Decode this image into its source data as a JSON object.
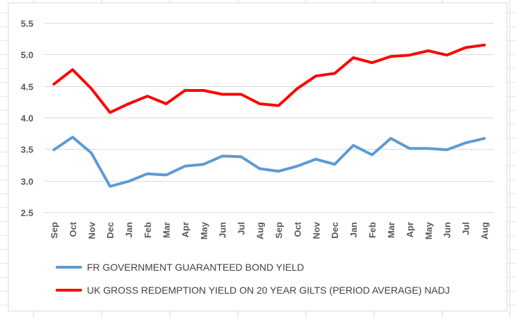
{
  "chart_data": {
    "type": "line",
    "categories": [
      "Sep",
      "Oct",
      "Nov",
      "Dec",
      "Jan",
      "Feb",
      "Mar",
      "Apr",
      "May",
      "Jun",
      "Jul",
      "Aug",
      "Sep",
      "Oct",
      "Nov",
      "Dec",
      "Jan",
      "Feb",
      "Mar",
      "Apr",
      "May",
      "Jun",
      "Jul",
      "Aug"
    ],
    "ylim": [
      2.5,
      5.5
    ],
    "yticks": [
      "5.5",
      "5.0",
      "4.5",
      "4.0",
      "3.5",
      "3.0",
      "2.5"
    ],
    "ytick_values": [
      5.5,
      5.0,
      4.5,
      4.0,
      3.5,
      3.0,
      2.5
    ],
    "grid": true,
    "legend_position": "bottom",
    "series": [
      {
        "name": "FR GOVERNMENT GUARANTEED BOND YIELD",
        "color": "#5B9BD5",
        "values": [
          3.49,
          3.69,
          3.44,
          2.91,
          2.99,
          3.11,
          3.09,
          3.23,
          3.26,
          3.39,
          3.38,
          3.19,
          3.15,
          3.23,
          3.34,
          3.26,
          3.56,
          3.41,
          3.67,
          3.51,
          3.51,
          3.49,
          3.6,
          3.67
        ]
      },
      {
        "name": "UK GROSS REDEMPTION YIELD ON 20 YEAR GILTS (PERIOD AVERAGE) NADJ",
        "color": "#FF0000",
        "values": [
          4.53,
          4.76,
          4.46,
          4.08,
          4.22,
          4.34,
          4.22,
          4.43,
          4.43,
          4.37,
          4.37,
          4.22,
          4.19,
          4.46,
          4.66,
          4.7,
          4.95,
          4.87,
          4.97,
          4.99,
          5.06,
          4.99,
          5.11,
          5.15
        ]
      }
    ]
  }
}
